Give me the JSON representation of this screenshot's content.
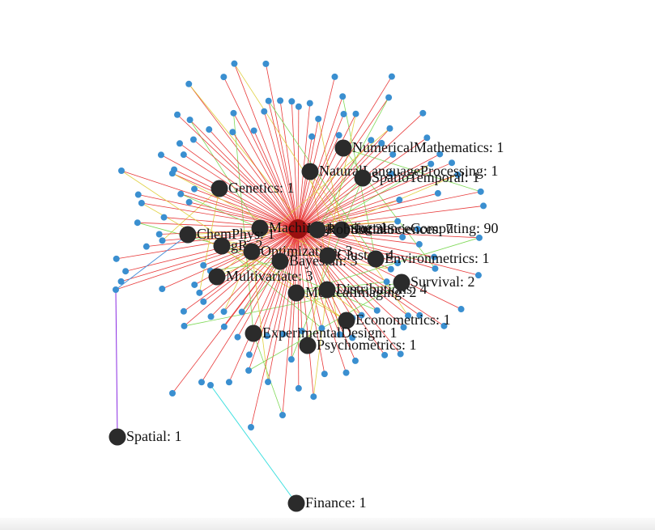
{
  "nodes": [
    {
      "label": "HighPerformanceComputing: 90"
    },
    {
      "label": "NumericalMathematics: 1"
    },
    {
      "label": "NaturalLanguageProcessing: 1"
    },
    {
      "label": "SpatioTemporal: 1"
    },
    {
      "label": "Genetics: 1"
    },
    {
      "label": "MachineLearning: 1"
    },
    {
      "label": "SocialSciences: 7"
    },
    {
      "label": "Robust: 3"
    },
    {
      "label": "ChemPhys: 1"
    },
    {
      "label": "gR: 2"
    },
    {
      "label": "Optimization: 3"
    },
    {
      "label": "Bayesian: 3"
    },
    {
      "label": "Cluster: 4"
    },
    {
      "label": "Environmetrics: 1"
    },
    {
      "label": "Multivariate: 3"
    },
    {
      "label": "MedicalImaging: 2"
    },
    {
      "label": "Distributions: 4"
    },
    {
      "label": "Survival: 2"
    },
    {
      "label": "Econometrics: 1"
    },
    {
      "label": "ExperimentalDesign: 1"
    },
    {
      "label": "Psychometrics: 1"
    },
    {
      "label": "Spatial: 1"
    },
    {
      "label": "Finance: 1"
    }
  ]
}
